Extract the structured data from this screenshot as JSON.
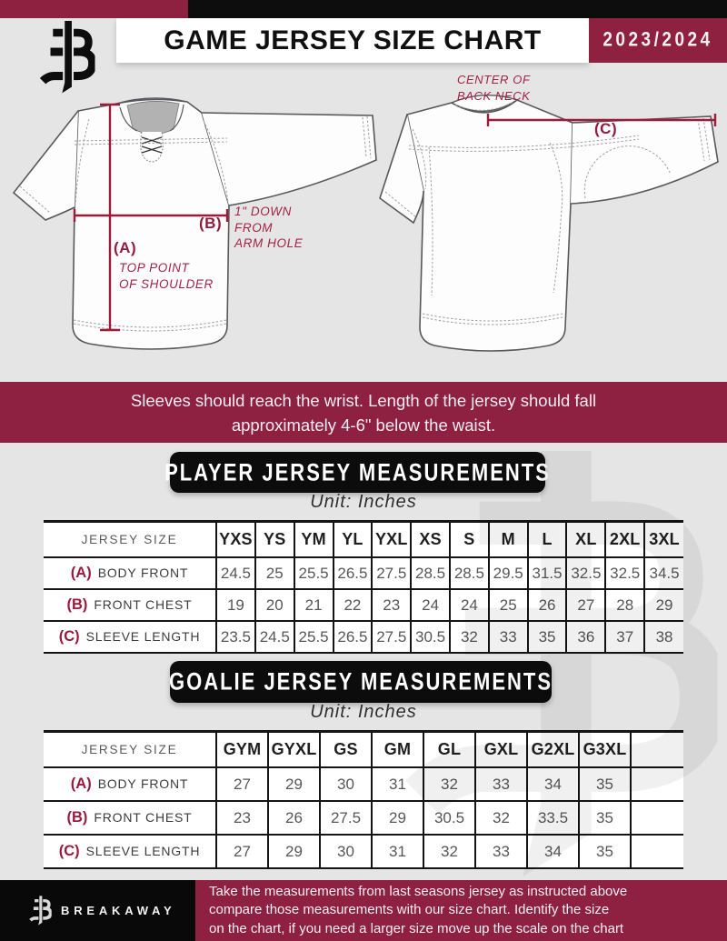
{
  "colors": {
    "maroon": "#8e2040",
    "maroon_bright": "#a32346",
    "black": "#0d0d0d",
    "page_bg": "#e6e5e6"
  },
  "header": {
    "title": "GAME JERSEY SIZE CHART",
    "season": "2023/2024"
  },
  "diagrams": {
    "front": {
      "label_a": "(A)",
      "note_a_line1": "TOP POINT",
      "note_a_line2": "OF SHOULDER",
      "label_b": "(B)",
      "note_b_line1": "1\" DOWN",
      "note_b_line2": "FROM",
      "note_b_line3": "ARM HOLE"
    },
    "back": {
      "label_c": "(C)",
      "note_c_line1": "CENTER OF",
      "note_c_line2": "BACK NECK"
    }
  },
  "fit_note": {
    "line1": "Sleeves should reach the wrist. Length of the jersey should fall",
    "line2": "approximately 4-6\" below the waist."
  },
  "player_table": {
    "title": "PLAYER JERSEY MEASUREMENTS",
    "unit": "Unit: Inches",
    "corner_label": "JERSEY SIZE",
    "columns": [
      "YXS",
      "YS",
      "YM",
      "YL",
      "YXL",
      "XS",
      "S",
      "M",
      "L",
      "XL",
      "2XL",
      "3XL"
    ],
    "rows": [
      {
        "key": "(A)",
        "label": "BODY FRONT",
        "values": [
          "24.5",
          "25",
          "25.5",
          "26.5",
          "27.5",
          "28.5",
          "28.5",
          "29.5",
          "31.5",
          "32.5",
          "32.5",
          "34.5"
        ]
      },
      {
        "key": "(B)",
        "label": "FRONT CHEST",
        "values": [
          "19",
          "20",
          "21",
          "22",
          "23",
          "24",
          "24",
          "25",
          "26",
          "27",
          "28",
          "29"
        ]
      },
      {
        "key": "(C)",
        "label": "SLEEVE LENGTH",
        "values": [
          "23.5",
          "24.5",
          "25.5",
          "26.5",
          "27.5",
          "30.5",
          "32",
          "33",
          "35",
          "36",
          "37",
          "38"
        ]
      }
    ]
  },
  "goalie_table": {
    "title": "GOALIE JERSEY MEASUREMENTS",
    "unit": "Unit: Inches",
    "corner_label": "JERSEY SIZE",
    "columns": [
      "GYM",
      "GYXL",
      "GS",
      "GM",
      "GL",
      "GXL",
      "G2XL",
      "G3XL"
    ],
    "rows": [
      {
        "key": "(A)",
        "label": "BODY FRONT",
        "values": [
          "27",
          "29",
          "30",
          "31",
          "32",
          "33",
          "34",
          "35"
        ]
      },
      {
        "key": "(B)",
        "label": "FRONT CHEST",
        "values": [
          "23",
          "26",
          "27.5",
          "29",
          "30.5",
          "32",
          "33.5",
          "35"
        ]
      },
      {
        "key": "(C)",
        "label": "SLEEVE LENGTH",
        "values": [
          "27",
          "29",
          "30",
          "31",
          "32",
          "33",
          "34",
          "35"
        ]
      }
    ]
  },
  "footer": {
    "brand": "BREAKAWAY",
    "line1": "Take the measurements from last seasons jersey as instructed above",
    "line2": "compare those measurements  with our size chart. Identify the size",
    "line3": "on the chart, if you need a larger size move up the scale on the chart"
  }
}
